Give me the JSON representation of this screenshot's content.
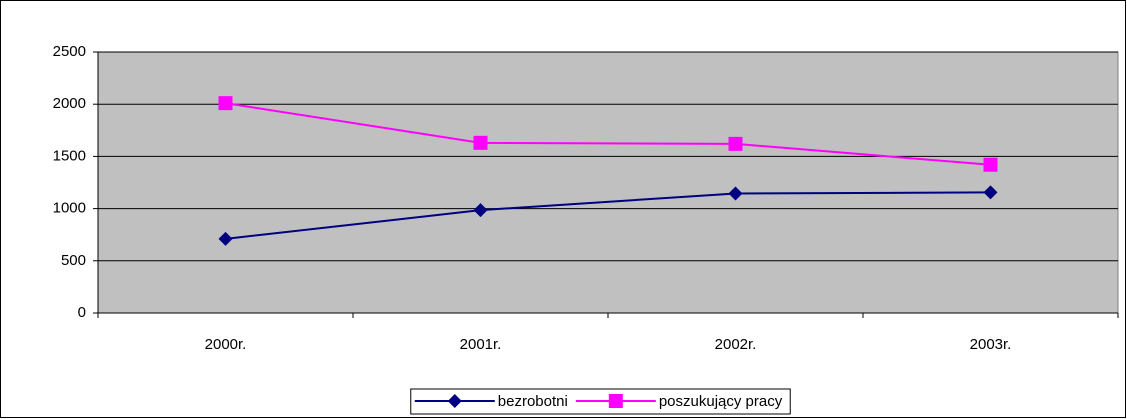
{
  "chart_data": {
    "type": "line",
    "categories": [
      "2000r.",
      "2001r.",
      "2002r.",
      "2003r."
    ],
    "series": [
      {
        "name": "bezrobotni",
        "color": "#000080",
        "marker": "diamond",
        "values": [
          710,
          985,
          1145,
          1155
        ]
      },
      {
        "name": "poszukujący pracy",
        "color": "#ff00ff",
        "marker": "square",
        "values": [
          2010,
          1630,
          1620,
          1420
        ]
      }
    ],
    "ylim": [
      0,
      2500
    ],
    "yticks": [
      0,
      500,
      1000,
      1500,
      2000,
      2500
    ],
    "grid": true,
    "plot_background": "#c0c0c0",
    "legend": "bottom"
  }
}
